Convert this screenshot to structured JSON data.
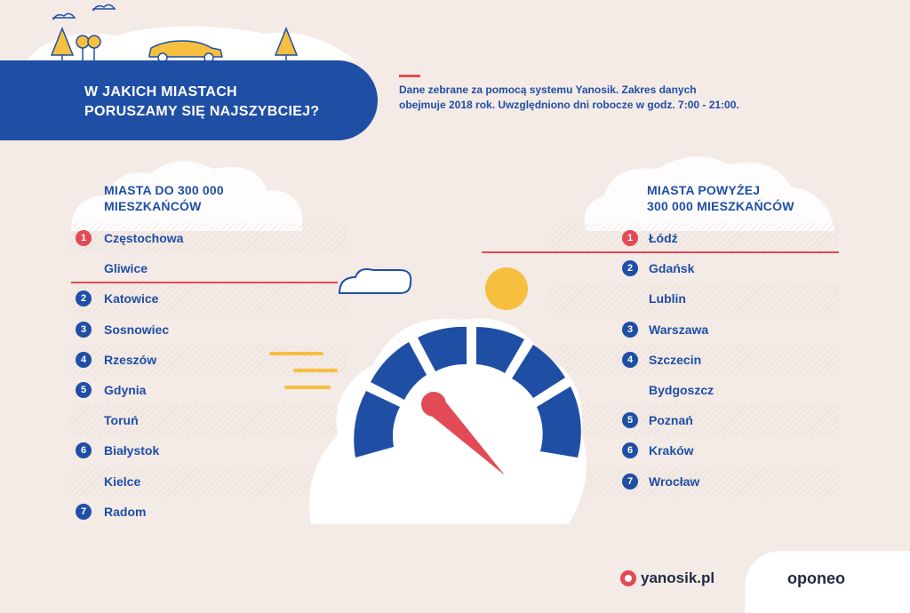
{
  "header": {
    "title_line1": "W JAKICH MIASTACH",
    "title_line2": "PORUSZAMY SIĘ NAJSZYBCIEJ?"
  },
  "note": {
    "line1": "Dane zebrane za pomocą systemu Yanosik. Zakres danych",
    "line2": "obejmuje 2018 rok. Uwzględniono dni robocze w godz. 7:00 - 21:00."
  },
  "left_column": {
    "heading_line1": "MIASTA DO 300 000",
    "heading_line2": "MIESZKAŃCÓW",
    "rows": [
      {
        "rank": "1",
        "city": "Częstochowa"
      },
      {
        "rank": "",
        "city": "Gliwice"
      },
      {
        "rank": "2",
        "city": "Katowice"
      },
      {
        "rank": "3",
        "city": "Sosnowiec"
      },
      {
        "rank": "4",
        "city": "Rzeszów"
      },
      {
        "rank": "5",
        "city": "Gdynia"
      },
      {
        "rank": "",
        "city": "Toruń"
      },
      {
        "rank": "6",
        "city": "Białystok"
      },
      {
        "rank": "",
        "city": "Kielce"
      },
      {
        "rank": "7",
        "city": "Radom"
      }
    ]
  },
  "right_column": {
    "heading_line1": "MIASTA POWYŻEJ",
    "heading_line2": "300 000 MIESZKAŃCÓW",
    "rows": [
      {
        "rank": "1",
        "city": "Łódź"
      },
      {
        "rank": "2",
        "city": "Gdańsk"
      },
      {
        "rank": "",
        "city": "Lublin"
      },
      {
        "rank": "3",
        "city": "Warszawa"
      },
      {
        "rank": "4",
        "city": "Szczecin"
      },
      {
        "rank": "",
        "city": "Bydgoszcz"
      },
      {
        "rank": "5",
        "city": "Poznań"
      },
      {
        "rank": "6",
        "city": "Kraków"
      },
      {
        "rank": "7",
        "city": "Wrocław"
      }
    ]
  },
  "footer": {
    "logo_yanosik": "yanosik.pl",
    "logo_oponeo": "oponeo"
  },
  "colors": {
    "blue": "#1f4fa5",
    "red": "#e24a55",
    "yellow": "#f6bf3f",
    "background": "#f4eae6"
  },
  "icons": [
    "car-icon",
    "tree-icon",
    "cloud-icon",
    "sun-icon",
    "speedometer-icon",
    "yanosik-logo-icon"
  ]
}
